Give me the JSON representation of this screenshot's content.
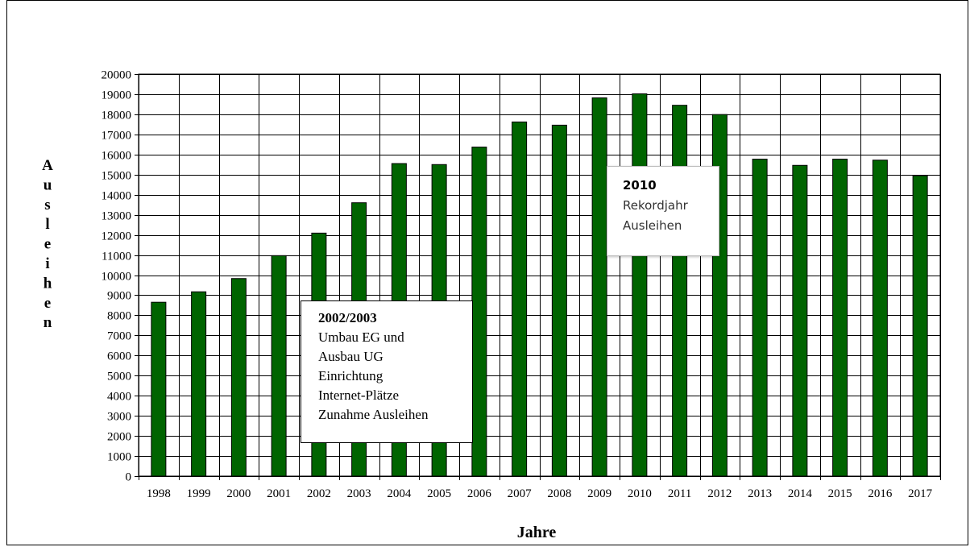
{
  "chart_data": {
    "type": "bar",
    "title": "",
    "xlabel": "Jahre",
    "ylabel": "Ausleihen",
    "ylim": [
      0,
      20000
    ],
    "ytick_step": 1000,
    "grid": true,
    "bar_color": "#006400",
    "categories": [
      "1998",
      "1999",
      "2000",
      "2001",
      "2002",
      "2003",
      "2004",
      "2005",
      "2006",
      "2007",
      "2008",
      "2009",
      "2010",
      "2011",
      "2012",
      "2013",
      "2014",
      "2015",
      "2016",
      "2017"
    ],
    "values": [
      8650,
      9170,
      9830,
      10970,
      12090,
      13600,
      15550,
      15500,
      16370,
      17620,
      17460,
      18820,
      19020,
      18450,
      17990,
      15770,
      15460,
      15770,
      15720,
      14950
    ],
    "annotations": [
      {
        "id": "note-2002",
        "title": "2002/2003",
        "lines": [
          "Umbau EG und",
          "Ausbau UG",
          "Einrichtung",
          "Internet-Plätze",
          "Zunahme Ausleihen"
        ]
      },
      {
        "id": "note-2010",
        "title": "2010",
        "lines": [
          "Rekordjahr",
          "Ausleihen"
        ]
      }
    ]
  }
}
